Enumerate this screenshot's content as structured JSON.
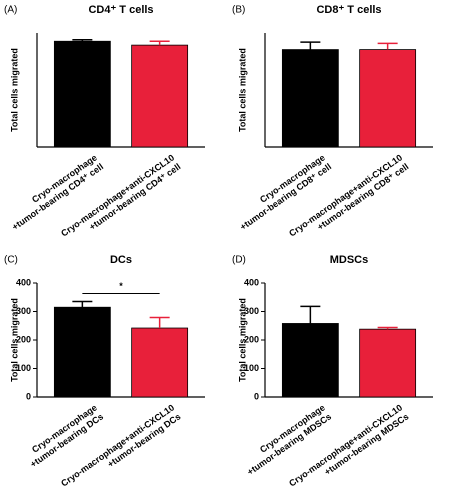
{
  "chart_data": [
    {
      "type": "bar",
      "panel_label": "(A)",
      "title": "CD4⁺ T cells",
      "ylabel": "Total cells migrated",
      "categories": [
        [
          "Cryo-macrophage",
          "+tumor-bearing CD4⁺ cell"
        ],
        [
          "Cryo-macrophage+anti-CXCL10",
          "+tumor-bearing CD4⁺ cell"
        ]
      ],
      "values": [
        218,
        210
      ],
      "errors": [
        3,
        8
      ],
      "colors": [
        "#000000",
        "#e8203a"
      ],
      "ylim": [
        0,
        235
      ]
    },
    {
      "type": "bar",
      "panel_label": "(B)",
      "title": "CD8⁺ T cells",
      "ylabel": "Total cells migrated",
      "categories": [
        [
          "Cryo-macrophage",
          "+tumor-bearing CD8⁺ cell"
        ],
        [
          "Cryo-macrophage+anti-CXCL10",
          "+tumor-bearing CD8⁺ cell"
        ]
      ],
      "values": [
        235,
        235
      ],
      "errors": [
        18,
        15
      ],
      "colors": [
        "#000000",
        "#e8203a"
      ],
      "ylim": [
        0,
        275
      ]
    },
    {
      "type": "bar",
      "panel_label": "(C)",
      "title": "DCs",
      "ylabel": "Total cells migrated",
      "categories": [
        [
          "Cryo-macrophage",
          "+tumor-bearing DCs"
        ],
        [
          "Cryo-macrophage+anti-CXCL10",
          "+tumor-bearing DCs"
        ]
      ],
      "values": [
        315,
        242
      ],
      "errors": [
        20,
        37
      ],
      "colors": [
        "#000000",
        "#e8203a"
      ],
      "ylim": [
        0,
        400
      ],
      "yticks": [
        0,
        100,
        200,
        300,
        400
      ],
      "annotation": "*"
    },
    {
      "type": "bar",
      "panel_label": "(D)",
      "title": "MDSCs",
      "ylabel": "Total cells migrated",
      "categories": [
        [
          "Cryo-macrophage",
          "+tumor-bearing MDSCs"
        ],
        [
          "Cryo-macrophage+anti-CXCL10",
          "+tumor-bearing MDSCs"
        ]
      ],
      "values": [
        258,
        238
      ],
      "errors": [
        60,
        6
      ],
      "colors": [
        "#000000",
        "#e8203a"
      ],
      "ylim": [
        0,
        400
      ],
      "yticks": [
        0,
        100,
        200,
        300,
        400
      ]
    }
  ]
}
